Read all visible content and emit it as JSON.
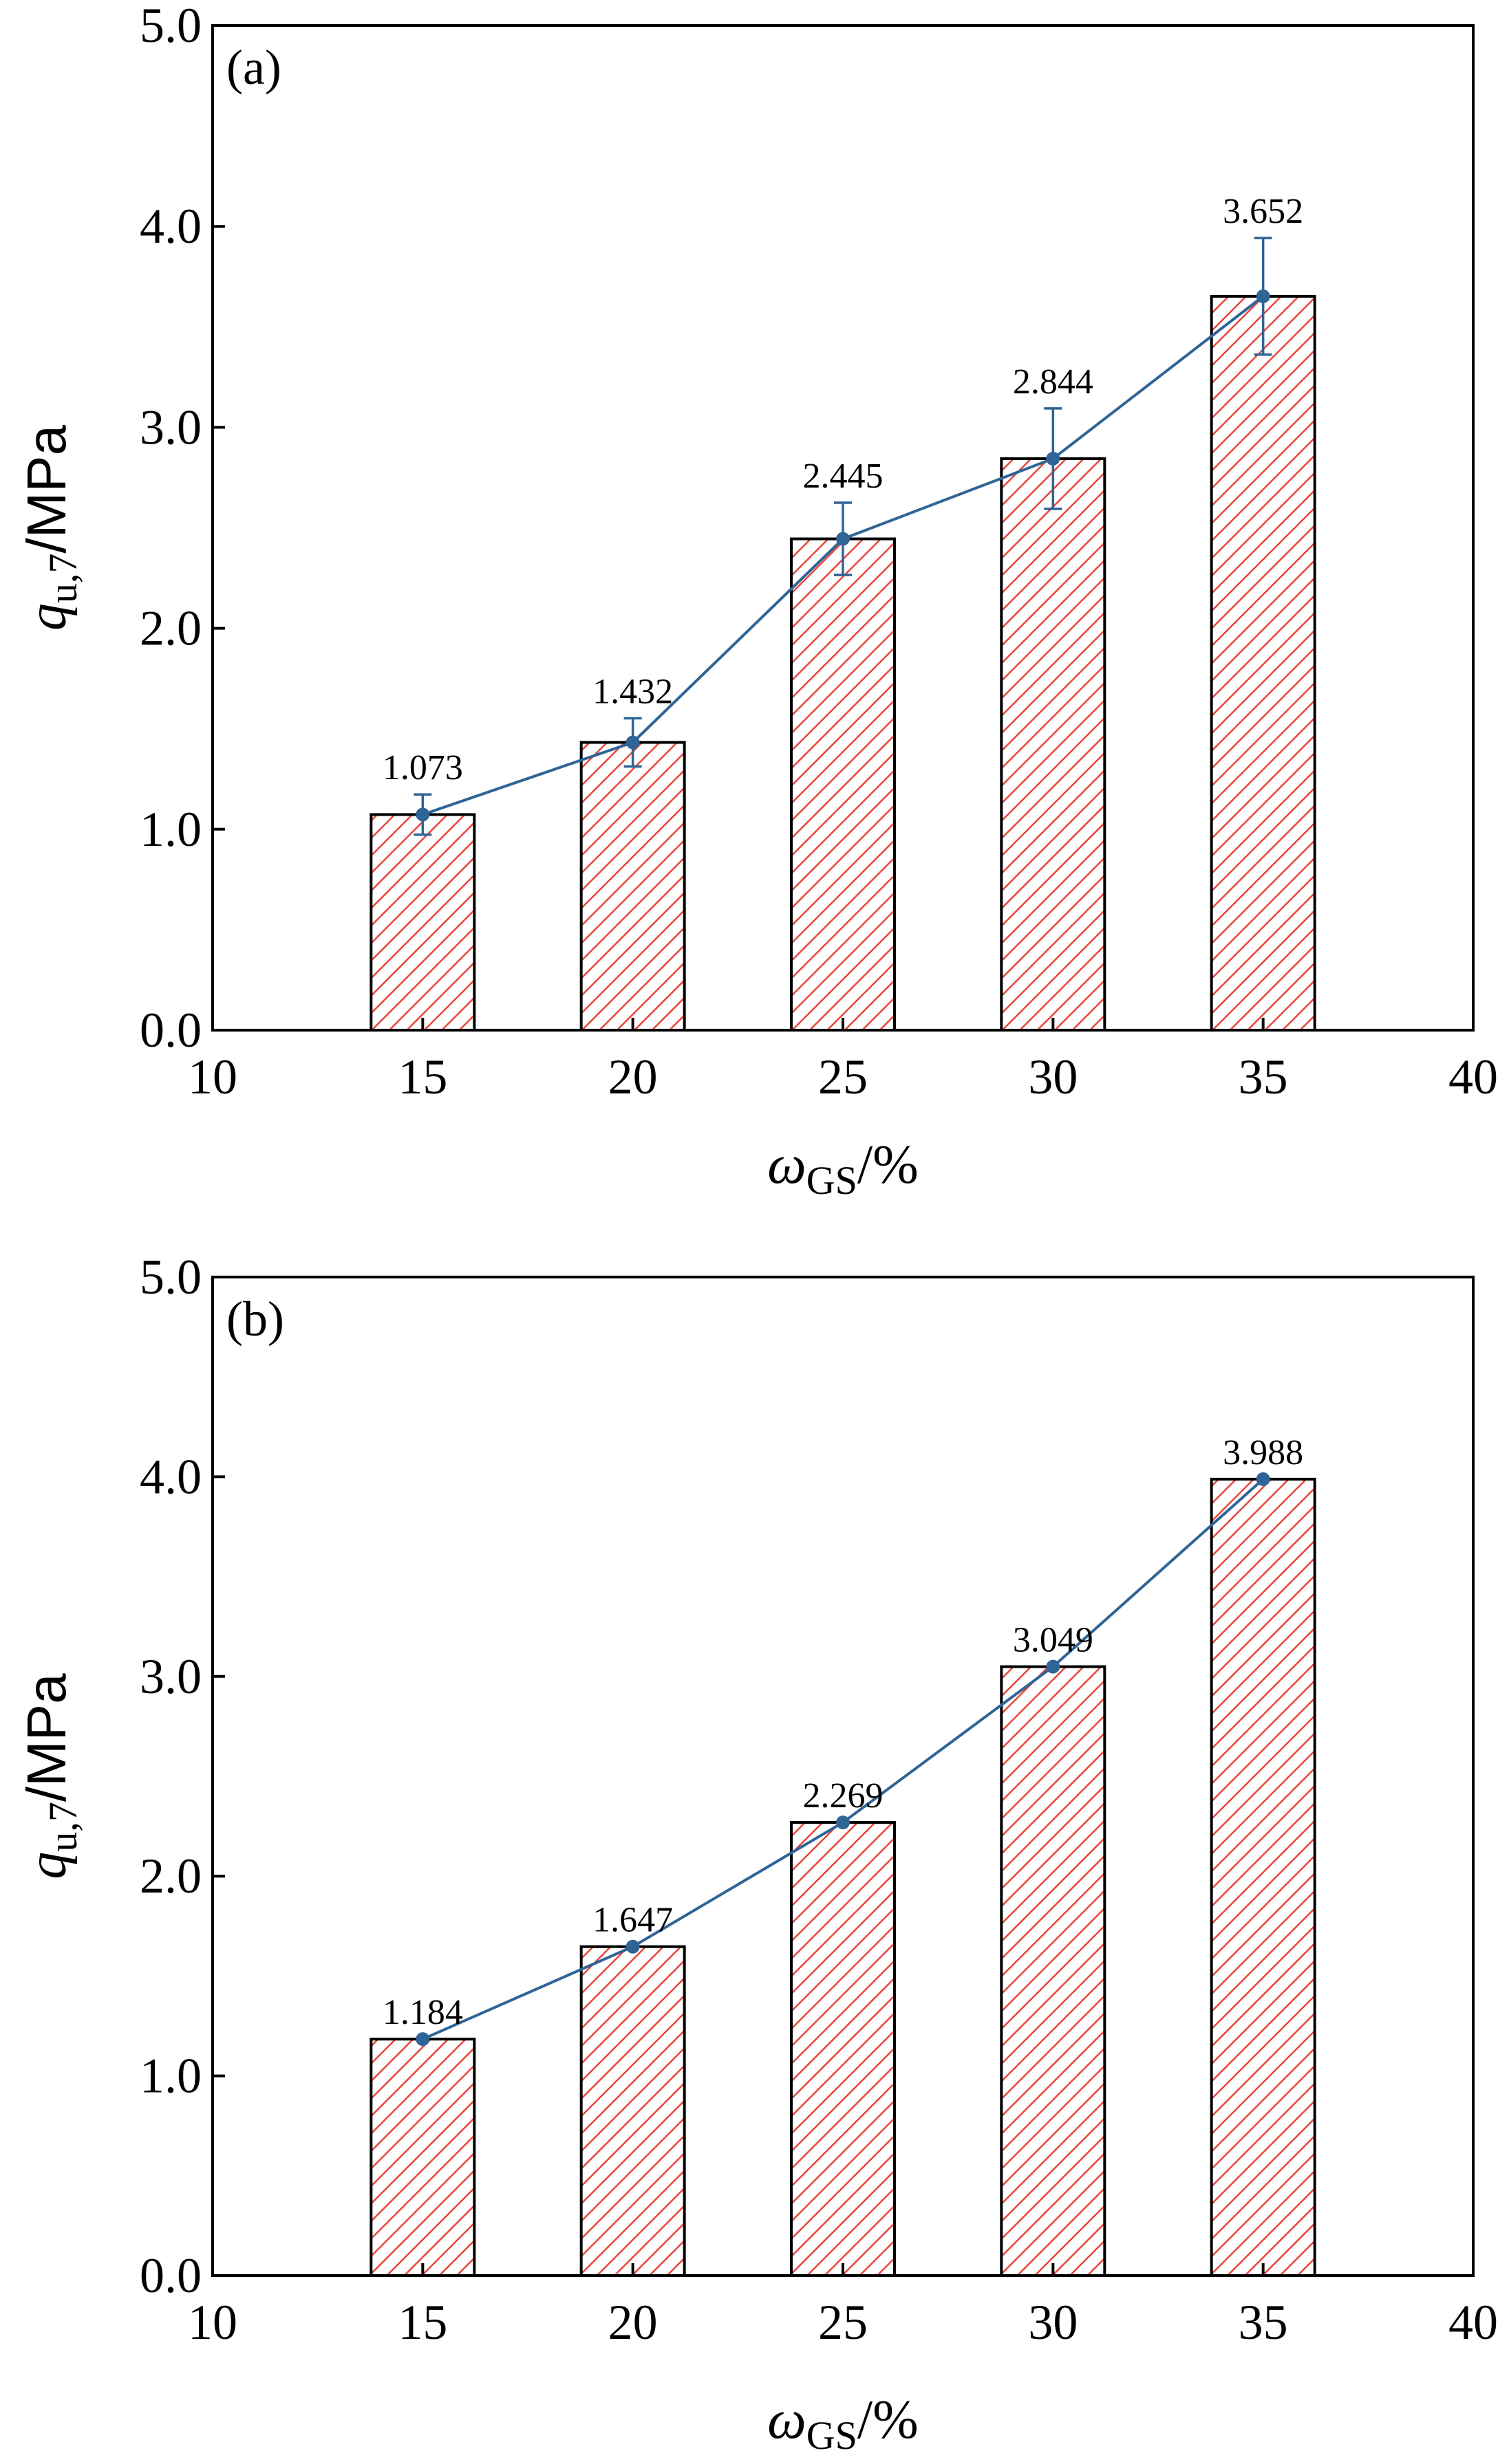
{
  "chart_data": [
    {
      "panel_label": "(a)",
      "type": "bar",
      "x": [
        15,
        20,
        25,
        30,
        35
      ],
      "values": [
        1.073,
        1.432,
        2.445,
        2.844,
        3.652
      ],
      "value_labels": [
        "1.073",
        "1.432",
        "2.445",
        "2.844",
        "3.652"
      ],
      "error_bars": [
        0.1,
        0.12,
        0.18,
        0.25,
        0.29
      ],
      "xlim": [
        10,
        40
      ],
      "ylim": [
        0,
        5
      ],
      "xticks": [
        "10",
        "15",
        "20",
        "25",
        "30",
        "35",
        "40"
      ],
      "yticks": [
        "0.0",
        "1.0",
        "2.0",
        "3.0",
        "4.0",
        "5.0"
      ],
      "xlabel": {
        "main": "ω",
        "sub": "GS",
        "suffix": "/%"
      },
      "ylabel": {
        "main": "q",
        "sub": "u,7",
        "suffix": "/MPa"
      },
      "overlay": "line",
      "bar_color": "#e8453c",
      "line_color": "#2f6496"
    },
    {
      "panel_label": "(b)",
      "type": "bar",
      "x": [
        15,
        20,
        25,
        30,
        35
      ],
      "values": [
        1.184,
        1.647,
        2.269,
        3.049,
        3.988
      ],
      "value_labels": [
        "1.184",
        "1.647",
        "2.269",
        "3.049",
        "3.988"
      ],
      "xlim": [
        10,
        40
      ],
      "ylim": [
        0,
        5
      ],
      "xticks": [
        "10",
        "15",
        "20",
        "25",
        "30",
        "35",
        "40"
      ],
      "yticks": [
        "0.0",
        "1.0",
        "2.0",
        "3.0",
        "4.0",
        "5.0"
      ],
      "xlabel": {
        "main": "ω",
        "sub": "GS",
        "suffix": "/%"
      },
      "ylabel": {
        "main": "q",
        "sub": "u,7",
        "suffix": "/MPa"
      },
      "overlay": "line",
      "bar_color": "#e8453c",
      "line_color": "#2f6496"
    }
  ]
}
